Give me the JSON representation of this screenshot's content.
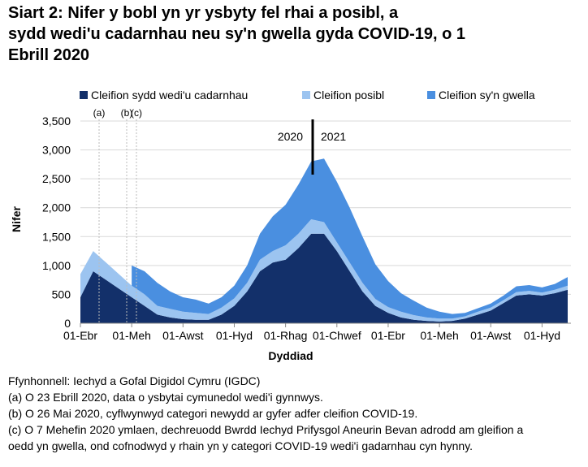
{
  "chart_data": {
    "type": "stacked_area",
    "title": "Siart 2: Nifer y bobl yn yr ysbyty fel rhai a posibl, a sydd wedi'u cadarnhau neu sy'n gwella gyda COVID-19, o 1 Ebrill 2020",
    "x_label": "Dyddiad",
    "y_label": "Nifer",
    "categories": [
      "01-Ebr",
      null,
      null,
      null,
      "01-Meh",
      null,
      null,
      null,
      "01-Awst",
      null,
      null,
      null,
      "01-Hyd",
      null,
      null,
      null,
      "01-Rhag",
      null,
      null,
      null,
      "01-Chwef",
      null,
      null,
      null,
      "01-Ebr",
      null,
      null,
      null,
      "01-Meh",
      null,
      null,
      null,
      "01-Awst",
      null,
      null,
      null,
      "01-Hyd",
      null,
      null
    ],
    "series": [
      {
        "name": "Cleifion sydd wedi'u cadarnhau",
        "color": "#13306a",
        "values": [
          450,
          900,
          750,
          600,
          450,
          300,
          150,
          100,
          70,
          60,
          60,
          150,
          300,
          550,
          900,
          1050,
          1100,
          1300,
          1550,
          1550,
          1250,
          900,
          550,
          300,
          180,
          100,
          60,
          40,
          30,
          40,
          80,
          150,
          220,
          350,
          480,
          500,
          480,
          520,
          580
        ]
      },
      {
        "name": "Cleifion posibl",
        "color": "#9cc4f0",
        "values": [
          400,
          350,
          300,
          250,
          200,
          200,
          150,
          150,
          130,
          120,
          100,
          120,
          130,
          150,
          200,
          200,
          250,
          250,
          250,
          200,
          150,
          150,
          150,
          120,
          100,
          100,
          80,
          60,
          50,
          40,
          40,
          50,
          50,
          50,
          60,
          60,
          50,
          60,
          70
        ]
      },
      {
        "name": "Cleifion sy'n gwella",
        "color": "#4a8fe0",
        "values": [
          null,
          null,
          null,
          null,
          350,
          400,
          400,
          300,
          250,
          230,
          180,
          180,
          220,
          300,
          450,
          600,
          700,
          850,
          1000,
          1100,
          1050,
          950,
          800,
          600,
          450,
          320,
          250,
          170,
          120,
          80,
          60,
          60,
          70,
          80,
          100,
          100,
          90,
          100,
          150
        ]
      }
    ],
    "ylim": [
      0,
      3500
    ],
    "yticks": [
      0,
      500,
      {
        "value": 1000,
        "label": "1,000"
      },
      {
        "value": 1500,
        "label": "1,500"
      },
      {
        "value": 2000,
        "label": "2,000"
      },
      {
        "value": 2500,
        "label": "2,500"
      },
      {
        "value": 3000,
        "label": "3,000"
      },
      {
        "value": 3500,
        "label": "3,500"
      }
    ],
    "grid": true,
    "annotations": [
      "(a)",
      "(b)",
      "(c)",
      "2020",
      "2021"
    ],
    "notes": [
      "Ffynhonnell: Iechyd a Gofal Digidol Cymru (IGDC)",
      "(a) O 23 Ebrill 2020, data o ysbytai cymunedol wedi'i gynnwys.",
      "(b) O 26 Mai 2020, cyflwynwyd categori newydd ar gyfer adfer cleifion COVID-19.",
      "(c) O 7 Mehefin 2020 ymlaen, dechreuodd Bwrdd Iechyd Prifysgol Aneurin Bevan adrodd am gleifion a",
      "oedd yn gwella, ond cofnodwyd y rhain yn y categori COVID-19 wedi'i gadarnhau cyn hynny."
    ]
  }
}
